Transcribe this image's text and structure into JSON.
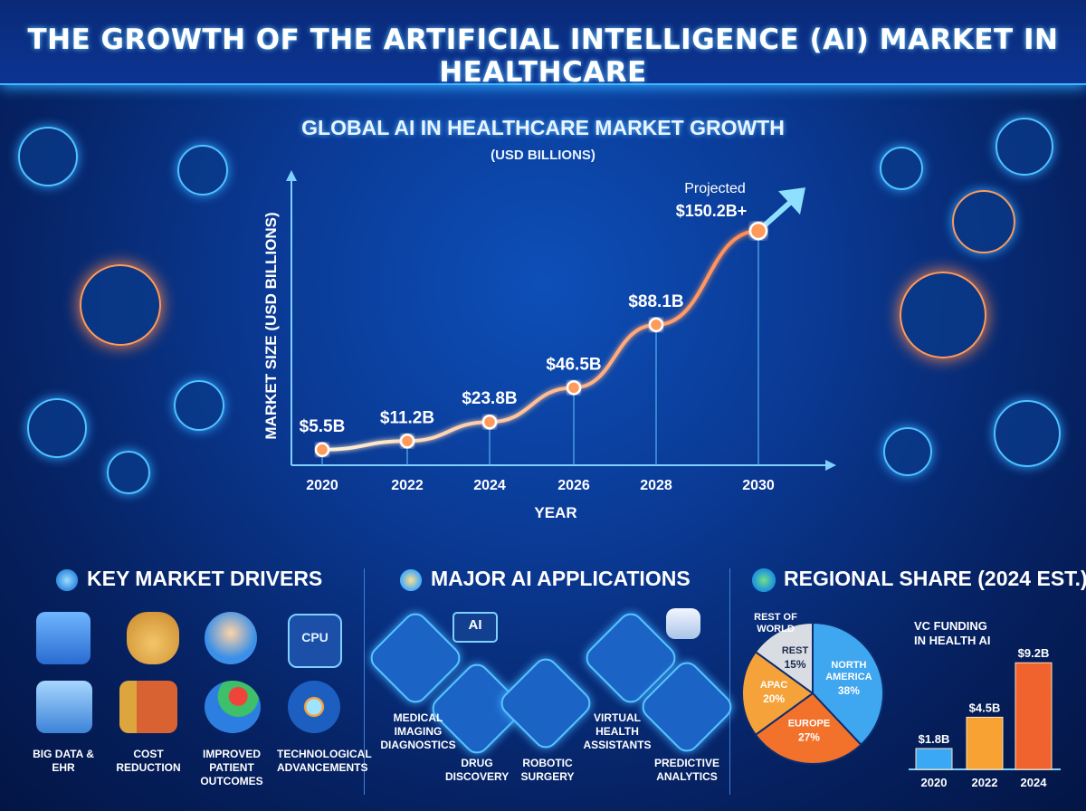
{
  "header": {
    "title": "THE GROWTH OF THE ARTIFICIAL INTELLIGENCE (AI) MARKET IN HEALTHCARE"
  },
  "chart_data": [
    {
      "type": "line",
      "title": "GLOBAL AI IN HEALTHCARE MARKET GROWTH",
      "subtitle": "(USD BILLIONS)",
      "xlabel": "YEAR",
      "ylabel": "MARKET SIZE (USD BILLIONS)",
      "x": [
        "2020",
        "2022",
        "2024",
        "2026",
        "2028",
        "2030"
      ],
      "values": [
        5.5,
        11.2,
        23.8,
        46.5,
        88.1,
        150.2
      ],
      "data_labels": [
        "$5.5B",
        "$11.2B",
        "$23.8B",
        "$46.5B",
        "$88.1B",
        "$150.2B+"
      ],
      "annotation": "Projected",
      "ylim": [
        0,
        170
      ],
      "color": "#ff8a50"
    },
    {
      "type": "pie",
      "title": "REGIONAL SHARE (2024 EST.)",
      "slices": [
        {
          "name": "NORTH AMERICA",
          "value": 38,
          "label": "38%",
          "color": "#3fa6f0"
        },
        {
          "name": "EUROPE",
          "value": 27,
          "label": "27%",
          "color": "#f2722c"
        },
        {
          "name": "APAC",
          "value": 20,
          "label": "20%",
          "color": "#f6a23a"
        },
        {
          "name": "REST",
          "value": 15,
          "label": "15%",
          "color": "#d9dde3"
        }
      ],
      "outer_label": "REST OF WORLD"
    },
    {
      "type": "bar",
      "title": "VC FUNDING IN HEALTH AI",
      "categories": [
        "2020",
        "2022",
        "2024"
      ],
      "values": [
        1.8,
        4.5,
        9.2
      ],
      "data_labels": [
        "$1.8B",
        "$4.5B",
        "$9.2B"
      ],
      "colors": [
        "#3aa8f5",
        "#f7a233",
        "#f0622e"
      ],
      "ylim": [
        0,
        10
      ]
    }
  ],
  "drivers": {
    "title": "KEY MARKET DRIVERS",
    "items": [
      {
        "label": "BIG DATA & EHR",
        "icon": "database-icon"
      },
      {
        "label": "COST REDUCTION",
        "icon": "money-bag-icon"
      },
      {
        "label": "IMPROVED PATIENT OUTCOMES",
        "icon": "patient-heart-icon"
      },
      {
        "label": "TECHNOLOGICAL ADVANCEMENTS",
        "icon": "cpu-icon"
      }
    ],
    "cpu_text": "CPU"
  },
  "applications": {
    "title": "MAJOR AI APPLICATIONS",
    "items": [
      {
        "label": "MEDICAL IMAGING DIAGNOSTICS",
        "icon": "imaging-icon"
      },
      {
        "label": "DRUG DISCOVERY",
        "icon": "dna-icon"
      },
      {
        "label": "ROBOTIC SURGERY",
        "icon": "robot-arm-icon"
      },
      {
        "label": "VIRTUAL HEALTH ASSISTANTS",
        "icon": "phone-chat-icon"
      },
      {
        "label": "PREDICTIVE ANALYTICS",
        "icon": "heart-monitor-icon"
      }
    ],
    "ai_chip_text": "AI"
  },
  "regional": {
    "title": "REGIONAL SHARE (2024 EST.)"
  },
  "colors": {
    "accent": "#3fb6ff",
    "line": "#ff8a50",
    "bg": "#0a3a95"
  }
}
